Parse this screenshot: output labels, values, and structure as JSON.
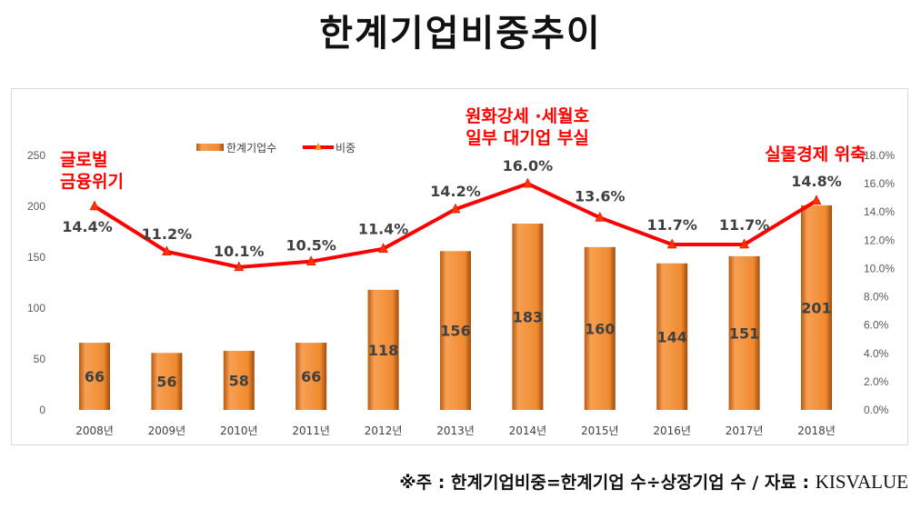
{
  "title": "한계기업비중추이",
  "footnote": {
    "text": "※주 : 한계기업비중=한계기업 수÷상장기업 수 / 자료 : ",
    "source": "KISVALUE"
  },
  "chart_data": {
    "type": "bar+line",
    "categories": [
      "2008년",
      "2009년",
      "2010년",
      "2011년",
      "2012년",
      "2013년",
      "2014년",
      "2015년",
      "2016년",
      "2017년",
      "2018년"
    ],
    "series": [
      {
        "name": "한계기업수",
        "type": "bar",
        "axis": "left",
        "color": "#f08a30",
        "values": [
          66,
          56,
          58,
          66,
          118,
          156,
          183,
          160,
          144,
          151,
          201
        ]
      },
      {
        "name": "비중",
        "type": "line",
        "axis": "right",
        "color": "#ff0000",
        "values": [
          14.4,
          11.2,
          10.1,
          10.5,
          11.4,
          14.2,
          16.0,
          13.6,
          11.7,
          11.7,
          14.8
        ]
      }
    ],
    "y_left": {
      "range": [
        0,
        250
      ],
      "ticks": [
        "0",
        "50",
        "100",
        "150",
        "200",
        "250"
      ]
    },
    "y_right": {
      "range": [
        0,
        18
      ],
      "ticks": [
        "0.0%",
        "2.0%",
        "4.0%",
        "6.0%",
        "8.0%",
        "10.0%",
        "12.0%",
        "14.0%",
        "16.0%",
        "18.0%"
      ]
    },
    "line_labels": [
      "14.4%",
      "11.2%",
      "10.1%",
      "10.5%",
      "11.4%",
      "14.2%",
      "16.0%",
      "13.6%",
      "11.7%",
      "11.7%",
      "14.8%"
    ],
    "legend": {
      "position": "top",
      "items": [
        "한계기업수",
        "비중"
      ]
    },
    "annotations": [
      {
        "lines": [
          "글로벌",
          "금융위기"
        ],
        "near": "2008년"
      },
      {
        "lines": [
          "원화강세 ·세월호",
          "일부 대기업 부실"
        ],
        "near": "2014년"
      },
      {
        "lines": [
          "실물경제 위축"
        ],
        "near": "2018년"
      }
    ],
    "annotation_color": "#ff0000",
    "grid": false
  }
}
